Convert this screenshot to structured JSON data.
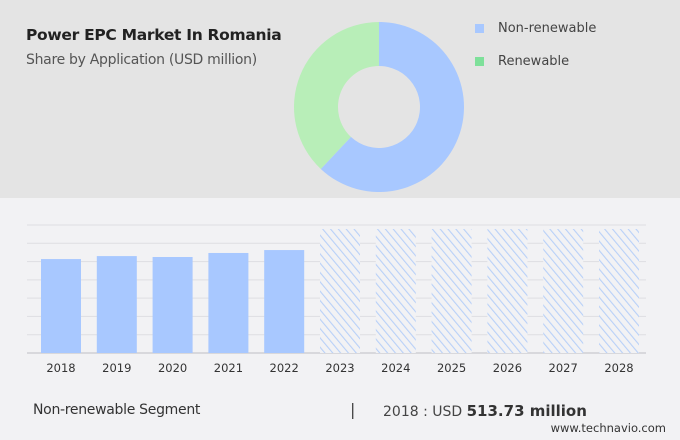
{
  "header": {
    "title": "Power EPC Market In Romania",
    "subtitle": "Share by Application (USD million)"
  },
  "footer": {
    "segment": "Non-renewable Segment",
    "separator": "|",
    "year_label": "2018 : USD",
    "value": "513.73 million",
    "source": "www.technavio.com"
  },
  "chart_data": [
    {
      "type": "pie",
      "donut": true,
      "legend_position": "right",
      "slices": [
        {
          "name": "Non-renewable",
          "value": 62,
          "color": "#a8c8ff"
        },
        {
          "name": "Renewable",
          "value": 38,
          "color": "#b8eeb8",
          "legend_color": "#7ee09a"
        }
      ]
    },
    {
      "type": "bar",
      "categories": [
        "2018",
        "2019",
        "2020",
        "2021",
        "2022",
        "2023",
        "2024",
        "2025",
        "2026",
        "2027",
        "2028"
      ],
      "series": [
        {
          "values": [
            513.73,
            530,
            525,
            547,
            563,
            null,
            null,
            null,
            null,
            null,
            null
          ],
          "color": "#a8c8ff"
        }
      ],
      "forecast_categories": [
        "2023",
        "2024",
        "2025",
        "2026",
        "2027",
        "2028"
      ],
      "forecast_style": "hatched",
      "ylim": [
        0,
        700
      ],
      "grid": true,
      "y_tick_labels": false
    }
  ]
}
